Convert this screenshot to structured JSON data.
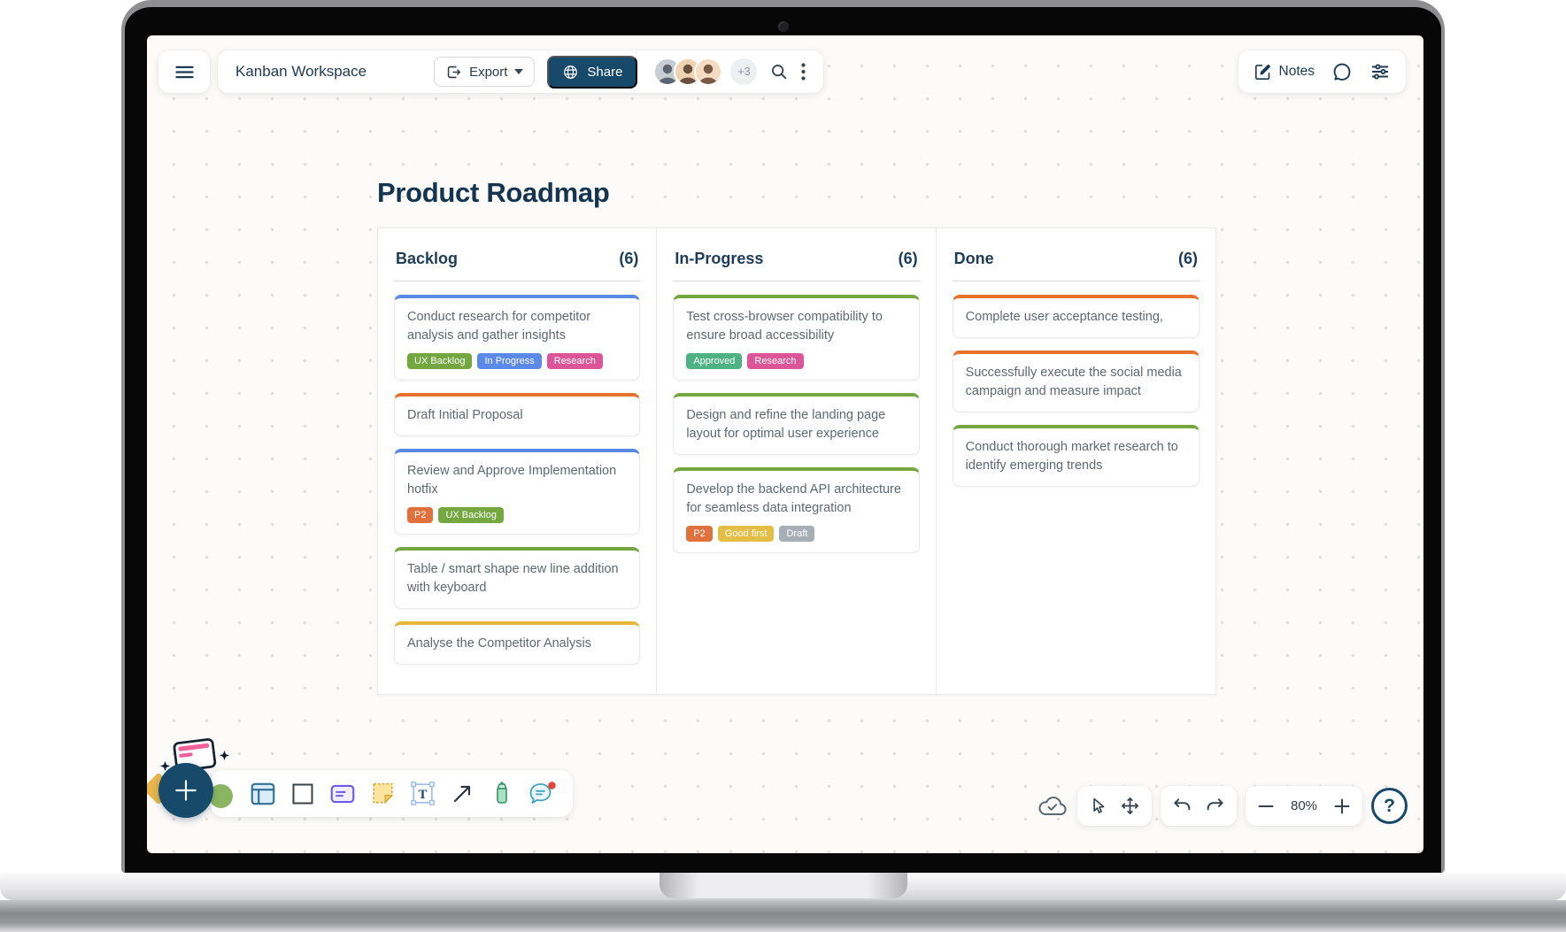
{
  "topbar": {
    "workspace_title": "Kanban Workspace",
    "export_label": "Export",
    "share_label": "Share",
    "overflow_badge": "+3",
    "notes_label": "Notes",
    "avatars": [
      {
        "bg": "#C7CDD2",
        "fg": "#5C6672"
      },
      {
        "bg": "#EFD2AF",
        "fg": "#6B4F3E"
      },
      {
        "bg": "#F4DCC2",
        "fg": "#7A5A47"
      }
    ]
  },
  "board": {
    "title": "Product Roadmap",
    "columns": [
      {
        "name": "Backlog",
        "count": "(6)",
        "cards": [
          {
            "text": "Conduct research for competitor analysis and gather insights",
            "accent": "#5A89E6",
            "tags": [
              {
                "label": "UX Backlog",
                "color": "#74A73F"
              },
              {
                "label": "In Progress",
                "color": "#5A89E6"
              },
              {
                "label": "Research",
                "color": "#DC5598"
              }
            ]
          },
          {
            "text": "Draft Initial Proposal",
            "accent": "#E8722C"
          },
          {
            "text": "Review and Approve Implementation hotfix",
            "accent": "#5A89E6",
            "tags": [
              {
                "label": "P2",
                "color": "#E0713C"
              },
              {
                "label": "UX Backlog",
                "color": "#74A73F"
              }
            ]
          },
          {
            "text": "Table / smart shape new line addition with keyboard",
            "accent": "#74A73F"
          },
          {
            "text": "Analyse the Competitor Analysis",
            "accent": "#E5B839"
          }
        ]
      },
      {
        "name": "In-Progress",
        "count": "(6)",
        "cards": [
          {
            "text": "Test cross-browser compatibility to ensure broad accessibility",
            "accent": "#74A73F",
            "tags": [
              {
                "label": "Approved",
                "color": "#4FB285"
              },
              {
                "label": "Research",
                "color": "#DC5598"
              }
            ]
          },
          {
            "text": "Design and refine the landing page layout for optimal user experience",
            "accent": "#74A73F"
          },
          {
            "text": "Develop the backend API architecture for seamless data integration",
            "accent": "#74A73F",
            "tags": [
              {
                "label": "P2",
                "color": "#E0713C"
              },
              {
                "label": "Good first",
                "color": "#E3BD44"
              },
              {
                "label": "Draft",
                "color": "#A7AEB6"
              }
            ]
          }
        ]
      },
      {
        "name": "Done",
        "count": "(6)",
        "cards": [
          {
            "text": "Complete user acceptance testing,",
            "accent": "#E8722C"
          },
          {
            "text": "Successfully execute the social media campaign and measure impact",
            "accent": "#E8722C"
          },
          {
            "text": "Conduct thorough market research to identify emerging trends",
            "accent": "#74A73F"
          }
        ]
      }
    ]
  },
  "tools_left": [
    "frame-icon",
    "rectangle-icon",
    "card-icon",
    "sticky-note-icon",
    "text-tool-icon",
    "arrow-icon",
    "highlighter-icon",
    "comment-icon"
  ],
  "footer": {
    "zoom_level": "80%",
    "help_label": "?"
  },
  "colors": {
    "brand_navy": "#17496B",
    "canvas_dot": "#E3E0DA",
    "accent_blue": "#5A89E6",
    "accent_orange": "#E8722C",
    "accent_green": "#74A73F",
    "accent_yellow": "#E5B839"
  }
}
